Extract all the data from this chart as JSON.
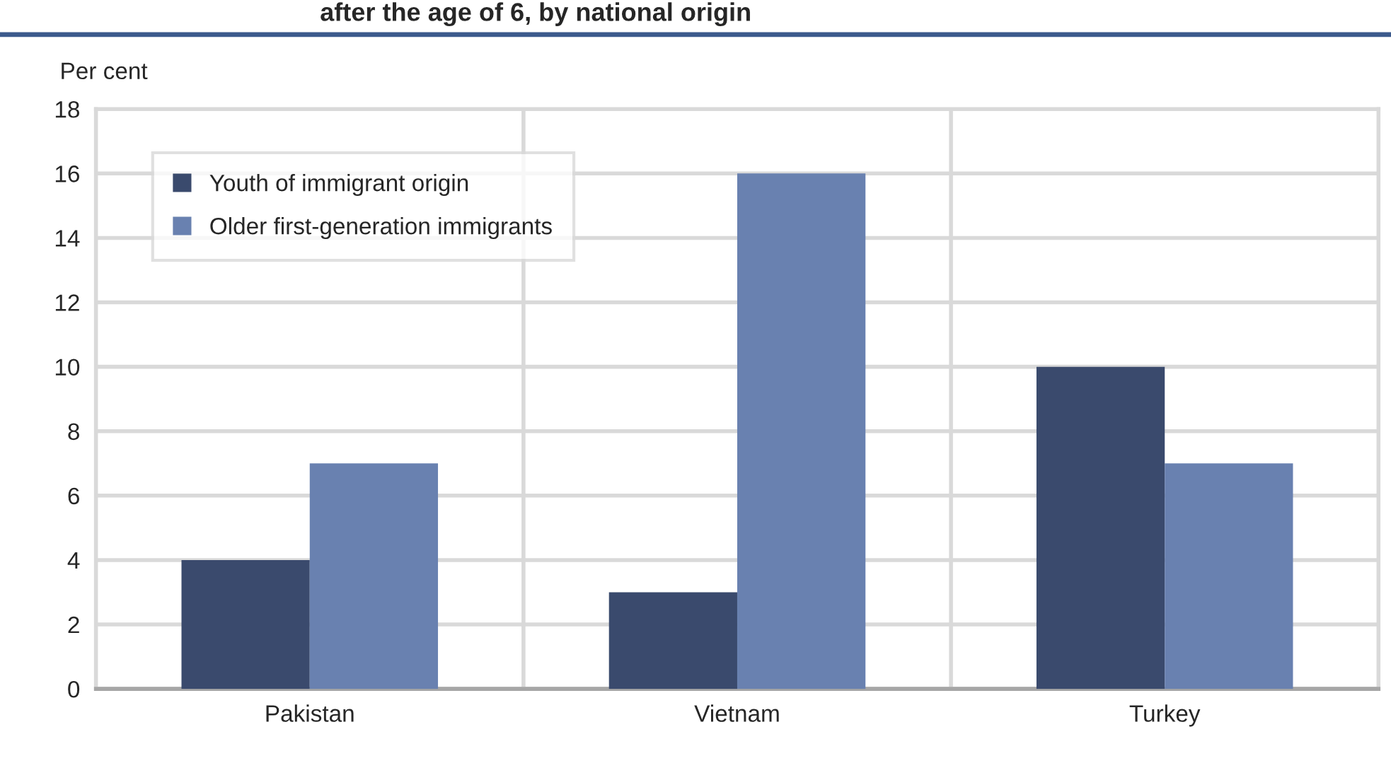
{
  "chart_data": {
    "type": "bar",
    "title": "after the age of 6, by national origin",
    "ylabel": "Per cent",
    "categories": [
      "Pakistan",
      "Vietnam",
      "Turkey"
    ],
    "series": [
      {
        "name": "Youth of immigrant origin",
        "color": "#3a4a6d",
        "values": [
          4,
          3,
          10
        ]
      },
      {
        "name": "Older first-generation immigrants",
        "color": "#6981b0",
        "values": [
          7,
          16,
          7
        ]
      }
    ],
    "ylim": [
      0,
      18
    ],
    "yticks": [
      0,
      2,
      4,
      6,
      8,
      10,
      12,
      14,
      16,
      18
    ],
    "grid": true,
    "legend": "top left"
  }
}
